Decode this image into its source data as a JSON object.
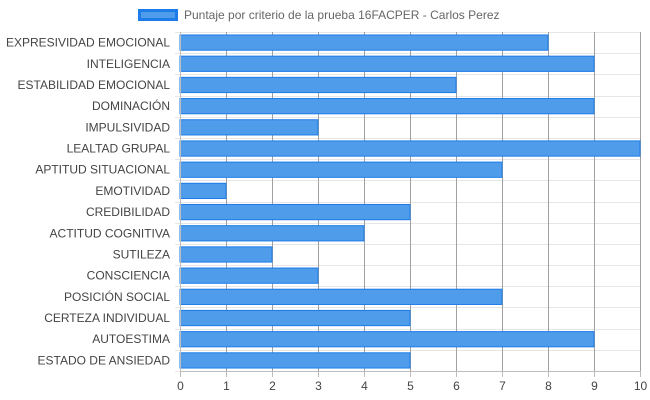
{
  "chart_data": {
    "type": "bar",
    "orientation": "horizontal",
    "legend": {
      "label": "Puntaje por criterio de la prueba 16FACPER - Carlos Perez",
      "position": "top"
    },
    "categories": [
      "EXPRESIVIDAD EMOCIONAL",
      "INTELIGENCIA",
      "ESTABILIDAD EMOCIONAL",
      "DOMINACIÓN",
      "IMPULSIVIDAD",
      "LEALTAD GRUPAL",
      "APTITUD SITUACIONAL",
      "EMOTIVIDAD",
      "CREDIBILIDAD",
      "ACTITUD COGNITIVA",
      "SUTILEZA",
      "CONSCIENCIA",
      "POSICIÓN SOCIAL",
      "CERTEZA INDIVIDUAL",
      "AUTOESTIMA",
      "ESTADO DE ANSIEDAD"
    ],
    "series": [
      {
        "name": "Puntaje por criterio de la prueba 16FACPER - Carlos Perez",
        "values": [
          8,
          9,
          6,
          9,
          3,
          10,
          7,
          1,
          5,
          4,
          2,
          3,
          7,
          5,
          9,
          5
        ]
      }
    ],
    "xlim": [
      0,
      10
    ],
    "xticks": [
      "0",
      "1",
      "2",
      "3",
      "4",
      "5",
      "6",
      "7",
      "8",
      "9",
      "10"
    ],
    "grid": true,
    "colors": {
      "bar_fill": "#4f9ceb",
      "bar_border": "#1e7ce8",
      "grid": "#e6e6e6",
      "axis": "#bdbdbd"
    }
  }
}
